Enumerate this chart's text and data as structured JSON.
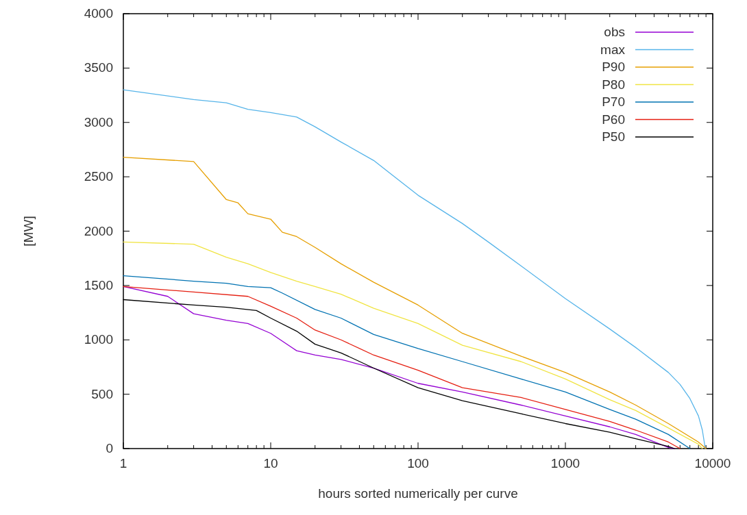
{
  "chart_data": {
    "type": "line",
    "xlabel": "hours sorted numerically per curve",
    "ylabel": "[MW]",
    "log": "x",
    "xlim": [
      1,
      10000
    ],
    "ylim": [
      0,
      4000
    ],
    "xticks": [
      1,
      {
        "value": 2,
        "label": null
      },
      {
        "value": 3,
        "label": null
      },
      {
        "value": 4,
        "label": null
      },
      {
        "value": 5,
        "label": null
      },
      {
        "value": 6,
        "label": null
      },
      {
        "value": 7,
        "label": null
      },
      {
        "value": 8,
        "label": null
      },
      {
        "value": 9,
        "label": null
      },
      10,
      {
        "value": 20,
        "label": null
      },
      {
        "value": 30,
        "label": null
      },
      {
        "value": 40,
        "label": null
      },
      {
        "value": 50,
        "label": null
      },
      {
        "value": 60,
        "label": null
      },
      {
        "value": 70,
        "label": null
      },
      {
        "value": 80,
        "label": null
      },
      {
        "value": 90,
        "label": null
      },
      100,
      {
        "value": 200,
        "label": null
      },
      {
        "value": 300,
        "label": null
      },
      {
        "value": 400,
        "label": null
      },
      {
        "value": 500,
        "label": null
      },
      {
        "value": 600,
        "label": null
      },
      {
        "value": 700,
        "label": null
      },
      {
        "value": 800,
        "label": null
      },
      {
        "value": 900,
        "label": null
      },
      1000,
      {
        "value": 2000,
        "label": null
      },
      {
        "value": 3000,
        "label": null
      },
      {
        "value": 4000,
        "label": null
      },
      {
        "value": 5000,
        "label": null
      },
      {
        "value": 6000,
        "label": null
      },
      {
        "value": 7000,
        "label": null
      },
      {
        "value": 8000,
        "label": null
      },
      {
        "value": 9000,
        "label": null
      },
      10000
    ],
    "yticks": [
      0,
      500,
      1000,
      1500,
      2000,
      2500,
      3000,
      3500,
      4000
    ],
    "grid": false,
    "legend": "top right",
    "line_style": "solid",
    "marker": "none",
    "series": [
      {
        "name": "obs",
        "color": "#9400d3",
        "x": [
          1,
          2,
          3,
          5,
          7,
          10,
          15,
          20,
          30,
          50,
          100,
          200,
          500,
          1000,
          2000,
          3000,
          5000,
          5500
        ],
        "values": [
          1490,
          1400,
          1240,
          1180,
          1150,
          1060,
          900,
          860,
          820,
          740,
          600,
          520,
          400,
          300,
          200,
          130,
          10,
          0
        ]
      },
      {
        "name": "max",
        "color": "#56b4e9",
        "x": [
          1,
          3,
          5,
          7,
          10,
          15,
          20,
          30,
          50,
          100,
          200,
          300,
          500,
          1000,
          2000,
          3000,
          5000,
          6000,
          7000,
          8000,
          8500,
          8900
        ],
        "values": [
          3300,
          3210,
          3180,
          3120,
          3090,
          3050,
          2960,
          2820,
          2650,
          2330,
          2070,
          1900,
          1680,
          1380,
          1100,
          930,
          700,
          590,
          460,
          300,
          170,
          0
        ]
      },
      {
        "name": "P90",
        "color": "#e69f00",
        "x": [
          1,
          3,
          5,
          6,
          7,
          10,
          12,
          15,
          20,
          30,
          50,
          100,
          200,
          500,
          1000,
          2000,
          3000,
          5000,
          8000,
          9000
        ],
        "values": [
          2680,
          2640,
          2290,
          2260,
          2160,
          2110,
          1990,
          1950,
          1850,
          1700,
          1530,
          1320,
          1060,
          850,
          700,
          520,
          400,
          230,
          60,
          0
        ]
      },
      {
        "name": "P80",
        "color": "#f0e442",
        "x": [
          1,
          3,
          5,
          7,
          10,
          15,
          20,
          30,
          50,
          100,
          200,
          500,
          1000,
          2000,
          3000,
          5000,
          8000,
          8500
        ],
        "values": [
          1900,
          1880,
          1760,
          1700,
          1620,
          1540,
          1490,
          1420,
          1290,
          1150,
          950,
          800,
          640,
          450,
          350,
          190,
          40,
          0
        ]
      },
      {
        "name": "P70",
        "color": "#0072b2",
        "x": [
          1,
          3,
          5,
          7,
          10,
          12,
          20,
          30,
          50,
          100,
          200,
          500,
          1000,
          2000,
          3000,
          5000,
          7000
        ],
        "values": [
          1590,
          1540,
          1520,
          1490,
          1480,
          1430,
          1280,
          1200,
          1050,
          920,
          800,
          640,
          520,
          360,
          270,
          130,
          0
        ]
      },
      {
        "name": "P60",
        "color": "#e51e10",
        "x": [
          1,
          3,
          7,
          10,
          15,
          20,
          30,
          50,
          100,
          200,
          500,
          1000,
          2000,
          3000,
          5000,
          6000
        ],
        "values": [
          1490,
          1440,
          1400,
          1310,
          1200,
          1090,
          1000,
          860,
          720,
          560,
          470,
          360,
          250,
          170,
          60,
          0
        ]
      },
      {
        "name": "P50",
        "color": "#000000",
        "x": [
          1,
          3,
          5,
          8,
          10,
          15,
          20,
          30,
          50,
          100,
          200,
          500,
          1000,
          2000,
          3000,
          5000,
          5500
        ],
        "values": [
          1370,
          1320,
          1300,
          1270,
          1200,
          1080,
          960,
          880,
          740,
          560,
          440,
          320,
          230,
          150,
          90,
          20,
          0
        ]
      }
    ]
  }
}
